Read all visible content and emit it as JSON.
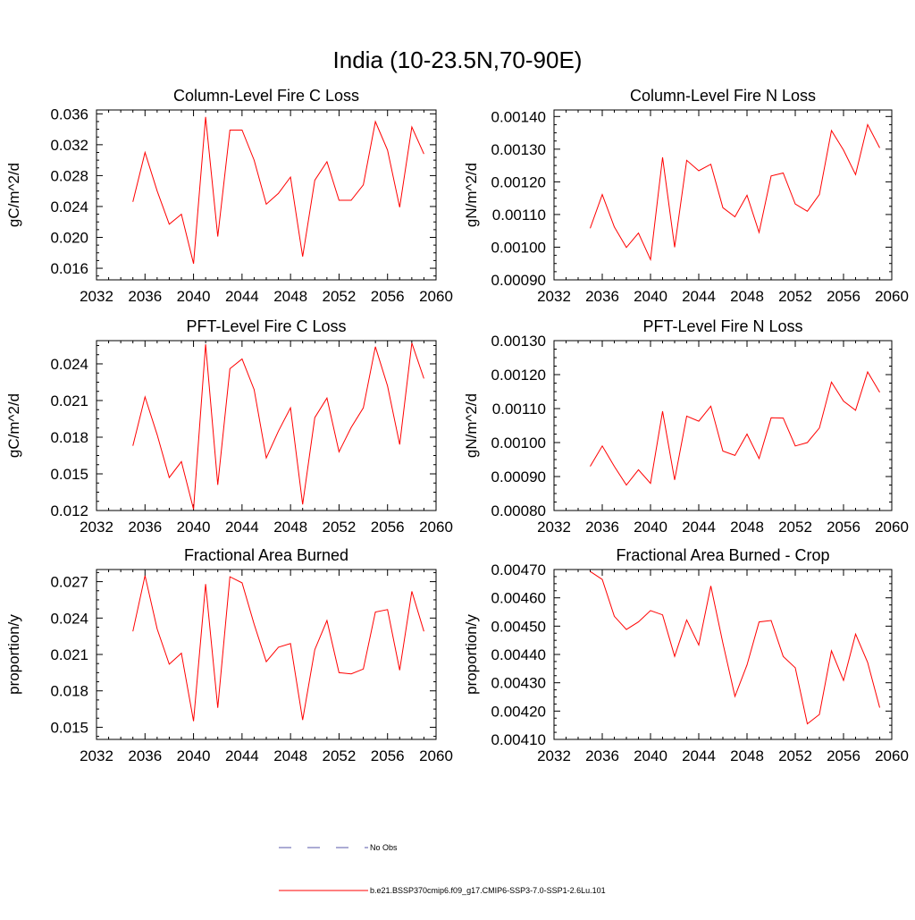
{
  "title": "India (10-23.5N,70-90E)",
  "legend": {
    "items": [
      {
        "label": "No Obs",
        "color": "#5a5aa8",
        "style": "dashed"
      },
      {
        "label": "b.e21.BSSP370cmip6.f09_g17.CMIP6-SSP3-7.0-SSP1-2.6Lu.101",
        "color": "#ff0000",
        "style": "solid"
      }
    ]
  },
  "chart_data": [
    {
      "type": "line",
      "title": "Column-Level Fire C Loss",
      "ylabel": "gC/m^2/d",
      "xlim": [
        2032,
        2060
      ],
      "ylim": [
        0.0145,
        0.0365
      ],
      "xticks": [
        2032,
        2036,
        2040,
        2044,
        2048,
        2052,
        2056,
        2060
      ],
      "yticks": [
        0.016,
        0.02,
        0.024,
        0.028,
        0.032,
        0.036
      ],
      "ytick_labels": [
        "0.016",
        "0.020",
        "0.024",
        "0.028",
        "0.032",
        "0.036"
      ],
      "series": [
        {
          "color": "#ff0000",
          "x": [
            2035,
            2036,
            2037,
            2038,
            2039,
            2040,
            2041,
            2042,
            2043,
            2044,
            2045,
            2046,
            2047,
            2048,
            2049,
            2050,
            2051,
            2052,
            2053,
            2054,
            2055,
            2056,
            2057,
            2058,
            2059
          ],
          "values": [
            0.0246,
            0.031,
            0.026,
            0.0217,
            0.023,
            0.0166,
            0.0356,
            0.0201,
            0.0339,
            0.0339,
            0.03,
            0.0243,
            0.0257,
            0.0278,
            0.0175,
            0.0274,
            0.0298,
            0.0248,
            0.0248,
            0.0268,
            0.035,
            0.0313,
            0.0239,
            0.0343,
            0.0308
          ]
        }
      ]
    },
    {
      "type": "line",
      "title": "Column-Level Fire N Loss",
      "ylabel": "gN/m^2/d",
      "xlim": [
        2032,
        2060
      ],
      "ylim": [
        0.0009,
        0.00142
      ],
      "xticks": [
        2032,
        2036,
        2040,
        2044,
        2048,
        2052,
        2056,
        2060
      ],
      "yticks": [
        0.0009,
        0.001,
        0.0011,
        0.0012,
        0.0013,
        0.0014
      ],
      "ytick_labels": [
        "0.00090",
        "0.00100",
        "0.00110",
        "0.00120",
        "0.00130",
        "0.00140"
      ],
      "series": [
        {
          "color": "#ff0000",
          "x": [
            2035,
            2036,
            2037,
            2038,
            2039,
            2040,
            2041,
            2042,
            2043,
            2044,
            2045,
            2046,
            2047,
            2048,
            2049,
            2050,
            2051,
            2052,
            2053,
            2054,
            2055,
            2056,
            2057,
            2058,
            2059
          ],
          "values": [
            0.001058,
            0.001161,
            0.001062,
            0.000999,
            0.001043,
            0.000962,
            0.001275,
            0.001,
            0.001266,
            0.001234,
            0.001254,
            0.001121,
            0.001093,
            0.001159,
            0.001045,
            0.001218,
            0.001227,
            0.001132,
            0.00111,
            0.001161,
            0.001357,
            0.001297,
            0.001222,
            0.001375,
            0.001304
          ]
        }
      ]
    },
    {
      "type": "line",
      "title": "PFT-Level Fire C Loss",
      "ylabel": "gC/m^2/d",
      "xlim": [
        2032,
        2060
      ],
      "ylim": [
        0.012,
        0.0259
      ],
      "xticks": [
        2032,
        2036,
        2040,
        2044,
        2048,
        2052,
        2056,
        2060
      ],
      "yticks": [
        0.012,
        0.015,
        0.018,
        0.021,
        0.024
      ],
      "ytick_labels": [
        "0.012",
        "0.015",
        "0.018",
        "0.021",
        "0.024"
      ],
      "series": [
        {
          "color": "#ff0000",
          "x": [
            2035,
            2036,
            2037,
            2038,
            2039,
            2040,
            2041,
            2042,
            2043,
            2044,
            2045,
            2046,
            2047,
            2048,
            2049,
            2050,
            2051,
            2052,
            2053,
            2054,
            2055,
            2056,
            2057,
            2058,
            2059
          ],
          "values": [
            0.0173,
            0.0213,
            0.0182,
            0.0147,
            0.016,
            0.0121,
            0.0256,
            0.0141,
            0.0236,
            0.0244,
            0.0219,
            0.0163,
            0.0185,
            0.0204,
            0.0125,
            0.0196,
            0.0212,
            0.0168,
            0.0188,
            0.0204,
            0.0254,
            0.0222,
            0.0174,
            0.0257,
            0.0228
          ]
        }
      ]
    },
    {
      "type": "line",
      "title": "PFT-Level Fire N Loss",
      "ylabel": "gN/m^2/d",
      "xlim": [
        2032,
        2060
      ],
      "ylim": [
        0.0008,
        0.0013
      ],
      "xticks": [
        2032,
        2036,
        2040,
        2044,
        2048,
        2052,
        2056,
        2060
      ],
      "yticks": [
        0.0008,
        0.0009,
        0.001,
        0.0011,
        0.0012,
        0.0013
      ],
      "ytick_labels": [
        "0.00080",
        "0.00090",
        "0.00100",
        "0.00110",
        "0.00120",
        "0.00130"
      ],
      "series": [
        {
          "color": "#ff0000",
          "x": [
            2035,
            2036,
            2037,
            2038,
            2039,
            2040,
            2041,
            2042,
            2043,
            2044,
            2045,
            2046,
            2047,
            2048,
            2049,
            2050,
            2051,
            2052,
            2053,
            2054,
            2055,
            2056,
            2057,
            2058,
            2059
          ],
          "values": [
            0.00093,
            0.00099,
            0.00093,
            0.000875,
            0.00092,
            0.00088,
            0.001092,
            0.00089,
            0.001078,
            0.001063,
            0.001107,
            0.000975,
            0.000962,
            0.001025,
            0.000953,
            0.001073,
            0.001072,
            0.00099,
            0.001,
            0.001043,
            0.001178,
            0.001122,
            0.001095,
            0.001208,
            0.001148
          ]
        }
      ]
    },
    {
      "type": "line",
      "title": "Fractional Area Burned",
      "ylabel": "proportion/y",
      "xlim": [
        2032,
        2060
      ],
      "ylim": [
        0.014,
        0.028
      ],
      "xticks": [
        2032,
        2036,
        2040,
        2044,
        2048,
        2052,
        2056,
        2060
      ],
      "yticks": [
        0.015,
        0.018,
        0.021,
        0.024,
        0.027
      ],
      "ytick_labels": [
        "0.015",
        "0.018",
        "0.021",
        "0.024",
        "0.027"
      ],
      "series": [
        {
          "color": "#ff0000",
          "x": [
            2035,
            2036,
            2037,
            2038,
            2039,
            2040,
            2041,
            2042,
            2043,
            2044,
            2045,
            2046,
            2047,
            2048,
            2049,
            2050,
            2051,
            2052,
            2053,
            2054,
            2055,
            2056,
            2057,
            2058,
            2059
          ],
          "values": [
            0.0229,
            0.0275,
            0.0231,
            0.0202,
            0.0211,
            0.0155,
            0.0268,
            0.0166,
            0.0274,
            0.0269,
            0.0235,
            0.0204,
            0.0216,
            0.0219,
            0.0156,
            0.0214,
            0.0238,
            0.0195,
            0.0194,
            0.0198,
            0.0245,
            0.0247,
            0.0197,
            0.0262,
            0.0229
          ]
        }
      ]
    },
    {
      "type": "line",
      "title": "Fractional Area Burned - Crop",
      "ylabel": "proportion/y",
      "xlim": [
        2032,
        2060
      ],
      "ylim": [
        0.0041,
        0.0047
      ],
      "xticks": [
        2032,
        2036,
        2040,
        2044,
        2048,
        2052,
        2056,
        2060
      ],
      "yticks": [
        0.0041,
        0.0042,
        0.0043,
        0.0044,
        0.0045,
        0.0046,
        0.0047
      ],
      "ytick_labels": [
        "0.00410",
        "0.00420",
        "0.00430",
        "0.00440",
        "0.00450",
        "0.00460",
        "0.00470"
      ],
      "series": [
        {
          "color": "#ff0000",
          "x": [
            2035,
            2036,
            2037,
            2038,
            2039,
            2040,
            2041,
            2042,
            2043,
            2044,
            2045,
            2046,
            2047,
            2048,
            2049,
            2050,
            2051,
            2052,
            2053,
            2054,
            2055,
            2056,
            2057,
            2058,
            2059
          ],
          "values": [
            0.004693,
            0.004665,
            0.004535,
            0.004488,
            0.004515,
            0.004555,
            0.00454,
            0.004393,
            0.004522,
            0.004433,
            0.004642,
            0.00444,
            0.004252,
            0.004363,
            0.004515,
            0.00452,
            0.004393,
            0.004353,
            0.004155,
            0.004188,
            0.004413,
            0.004308,
            0.004472,
            0.004372,
            0.004212
          ]
        }
      ]
    }
  ]
}
